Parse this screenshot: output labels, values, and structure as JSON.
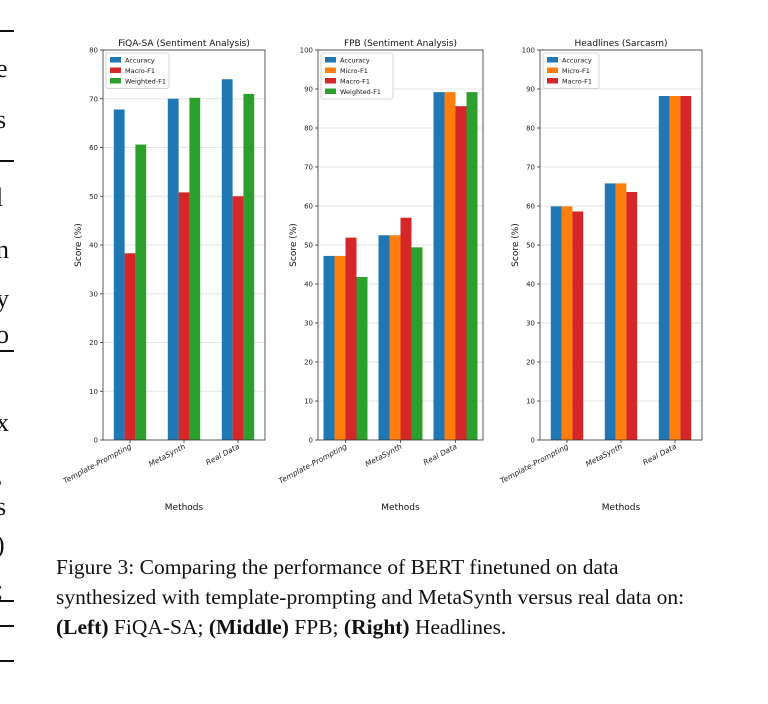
{
  "chart_data": [
    {
      "type": "bar",
      "title": "FiQA-SA (Sentiment Analysis)",
      "xlabel": "Methods",
      "ylabel": "Score (%)",
      "ylim": [
        0,
        80
      ],
      "yticks": [
        0,
        10,
        20,
        30,
        40,
        50,
        60,
        70,
        80
      ],
      "categories": [
        "Template-Prompting",
        "MetaSynth",
        "Real Data"
      ],
      "legend_position": "top-left",
      "series": [
        {
          "name": "Accuracy",
          "color": "#1f77b4",
          "values": [
            67.8,
            70.0,
            74.0
          ]
        },
        {
          "name": "Macro-F1",
          "color": "#d62728",
          "values": [
            38.3,
            50.8,
            50.0
          ]
        },
        {
          "name": "Weighted-F1",
          "color": "#2ca02c",
          "values": [
            60.6,
            70.2,
            71.0
          ]
        }
      ]
    },
    {
      "type": "bar",
      "title": "FPB (Sentiment Analysis)",
      "xlabel": "Methods",
      "ylabel": "Score (%)",
      "ylim": [
        0,
        100
      ],
      "yticks": [
        0,
        10,
        20,
        30,
        40,
        50,
        60,
        70,
        80,
        90,
        100
      ],
      "categories": [
        "Template-Prompting",
        "MetaSynth",
        "Real Data"
      ],
      "legend_position": "top-left",
      "series": [
        {
          "name": "Accuracy",
          "color": "#1f77b4",
          "values": [
            47.2,
            52.5,
            89.2
          ]
        },
        {
          "name": "Micro-F1",
          "color": "#ff7f0e",
          "values": [
            47.2,
            52.5,
            89.2
          ]
        },
        {
          "name": "Macro-F1",
          "color": "#d62728",
          "values": [
            51.9,
            57.0,
            85.6
          ]
        },
        {
          "name": "Weighted-F1",
          "color": "#2ca02c",
          "values": [
            41.8,
            49.4,
            89.2
          ]
        }
      ]
    },
    {
      "type": "bar",
      "title": "Headlines (Sarcasm)",
      "xlabel": "Methods",
      "ylabel": "Score (%)",
      "ylim": [
        0,
        100
      ],
      "yticks": [
        0,
        10,
        20,
        30,
        40,
        50,
        60,
        70,
        80,
        90,
        100
      ],
      "categories": [
        "Template-Prompting",
        "MetaSynth",
        "Real Data"
      ],
      "legend_position": "top-left",
      "series": [
        {
          "name": "Accuracy",
          "color": "#1f77b4",
          "values": [
            59.9,
            65.8,
            88.2
          ]
        },
        {
          "name": "Micro-F1",
          "color": "#ff7f0e",
          "values": [
            59.9,
            65.8,
            88.2
          ]
        },
        {
          "name": "Macro-F1",
          "color": "#d62728",
          "values": [
            58.6,
            63.6,
            88.2
          ]
        }
      ]
    }
  ],
  "caption": {
    "label": "Figure 3:",
    "text_1": " Comparing the performance of BERT finetuned on data synthesized with template-prompting and MetaSynth versus real data on: ",
    "left_bold": "(Left)",
    "left_text": " FiQA-SA; ",
    "middle_bold": "(Middle)",
    "middle_text": " FPB; ",
    "right_bold": "(Right)",
    "right_text": " Headlines."
  },
  "margin_glyphs": [
    "e",
    "s",
    "l",
    "n",
    "y",
    "o",
    "x",
    ",",
    "s",
    ")",
    ";"
  ]
}
